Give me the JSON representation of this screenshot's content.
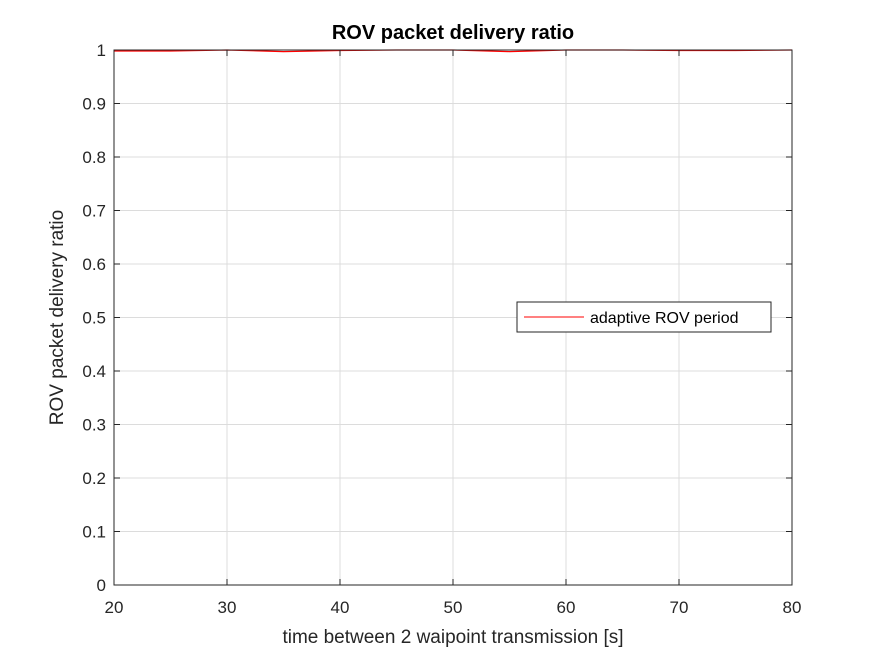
{
  "chart_data": {
    "type": "line",
    "title": "ROV packet delivery ratio",
    "xlabel": "time between 2 waipoint transmission [s]",
    "ylabel": "ROV packet delivery ratio",
    "xlim": [
      20,
      80
    ],
    "ylim": [
      0,
      1
    ],
    "xticks": [
      20,
      30,
      40,
      50,
      60,
      70,
      80
    ],
    "xtick_labels": [
      "20",
      "30",
      "40",
      "50",
      "60",
      "70",
      "80"
    ],
    "yticks": [
      0,
      0.1,
      0.2,
      0.3,
      0.4,
      0.5,
      0.6,
      0.7,
      0.8,
      0.9,
      1
    ],
    "ytick_labels": [
      "0",
      "0.1",
      "0.2",
      "0.3",
      "0.4",
      "0.5",
      "0.6",
      "0.7",
      "0.8",
      "0.9",
      "1"
    ],
    "grid": true,
    "legend_position": "center-right",
    "series": [
      {
        "name": "adaptive ROV period",
        "color": "#ff0000",
        "x": [
          20,
          25,
          30,
          35,
          40,
          45,
          50,
          55,
          60,
          65,
          70,
          75,
          80
        ],
        "y": [
          0.998,
          0.998,
          1.0,
          0.997,
          0.999,
          1.0,
          1.0,
          0.997,
          1.0,
          1.0,
          0.999,
          0.999,
          1.0
        ]
      }
    ]
  },
  "colors": {
    "axis": "#262626",
    "grid": "#dcdcdc",
    "background": "#ffffff",
    "series_line": "#ff0000"
  }
}
